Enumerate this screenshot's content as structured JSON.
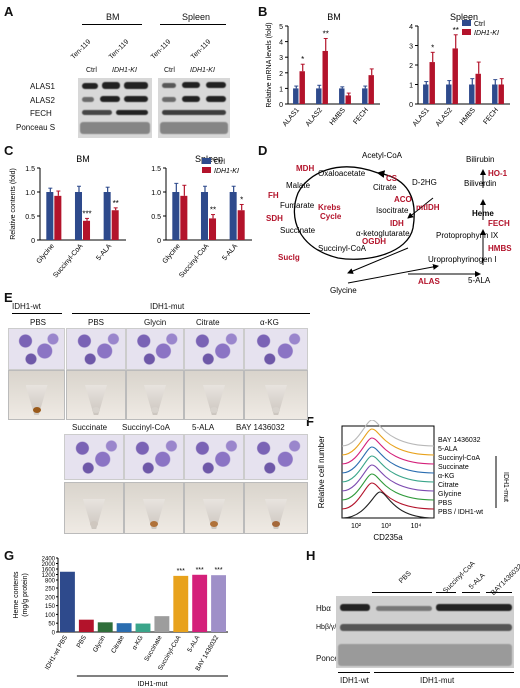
{
  "panel_labels": {
    "a": "A",
    "b": "B",
    "c": "C",
    "d": "D",
    "e": "E",
    "f": "F",
    "g": "G",
    "h": "H"
  },
  "panel_a": {
    "groups": [
      "BM",
      "Spleen"
    ],
    "genotype_hdr": [
      "Ten-119",
      "Ten-119"
    ],
    "lanes": [
      "Ctrl",
      "IDH1-KI",
      "Ctrl",
      "IDH1-KI"
    ],
    "rows": [
      "ALAS1",
      "ALAS2",
      "FECH",
      "Ponceau S"
    ]
  },
  "legend": {
    "ctrl": "Ctrl",
    "ki": "IDH1-KI",
    "ctrl_color": "#2e4a8c",
    "ki_color": "#b3132b"
  },
  "chart_data": [
    {
      "type": "bar",
      "panel": "B",
      "title": "BM",
      "ylabel": "Relative mRNA levels (fold)",
      "ylim": [
        0,
        5
      ],
      "yticks": [
        0,
        1,
        2,
        3,
        4,
        5
      ],
      "categories": [
        "ALAS1",
        "ALAS2",
        "HMBS",
        "FECH"
      ],
      "series": [
        {
          "name": "Ctrl",
          "values": [
            1.0,
            1.0,
            1.0,
            1.0
          ],
          "err": [
            0.15,
            0.2,
            0.1,
            0.15
          ]
        },
        {
          "name": "IDH1-KI",
          "values": [
            2.1,
            3.4,
            0.55,
            1.85
          ],
          "err": [
            0.45,
            0.8,
            0.15,
            0.4
          ]
        }
      ],
      "sig": [
        "*",
        "**",
        "",
        ""
      ]
    },
    {
      "type": "bar",
      "panel": "B",
      "title": "Spleen",
      "ylim": [
        0,
        4
      ],
      "yticks": [
        0,
        1,
        2,
        3,
        4
      ],
      "categories": [
        "ALAS1",
        "ALAS2",
        "HMBS",
        "FECH"
      ],
      "series": [
        {
          "name": "Ctrl",
          "values": [
            1.0,
            1.0,
            1.0,
            1.0
          ],
          "err": [
            0.15,
            0.2,
            0.3,
            0.25
          ]
        },
        {
          "name": "IDH1-KI",
          "values": [
            2.15,
            2.85,
            1.55,
            1.0
          ],
          "err": [
            0.5,
            0.7,
            0.6,
            0.3
          ]
        }
      ],
      "sig": [
        "*",
        "**",
        "",
        ""
      ]
    },
    {
      "type": "bar",
      "panel": "C",
      "title": "BM",
      "ylabel": "Relative contents (fold)",
      "ylim": [
        0,
        1.5
      ],
      "yticks": [
        0,
        0.5,
        1.0,
        1.5
      ],
      "categories": [
        "Glycine",
        "Succinyl-CoA",
        "5-ALA"
      ],
      "series": [
        {
          "name": "Ctrl",
          "values": [
            1.0,
            1.0,
            1.0
          ],
          "err": [
            0.08,
            0.12,
            0.1
          ]
        },
        {
          "name": "IDH1-KI",
          "values": [
            0.92,
            0.4,
            0.62
          ],
          "err": [
            0.1,
            0.05,
            0.05
          ]
        }
      ],
      "sig": [
        "",
        "***",
        "**"
      ]
    },
    {
      "type": "bar",
      "panel": "C",
      "title": "Spleen",
      "ylim": [
        0,
        1.5
      ],
      "yticks": [
        0,
        0.5,
        1.0,
        1.5
      ],
      "categories": [
        "Glycine",
        "Succinyl-CoA",
        "5-ALA"
      ],
      "series": [
        {
          "name": "Ctrl",
          "values": [
            1.0,
            1.0,
            1.0
          ],
          "err": [
            0.18,
            0.12,
            0.12
          ]
        },
        {
          "name": "IDH1-KI",
          "values": [
            0.92,
            0.45,
            0.62
          ],
          "err": [
            0.22,
            0.08,
            0.12
          ]
        }
      ],
      "sig": [
        "",
        "**",
        "*"
      ]
    },
    {
      "type": "bar",
      "panel": "G",
      "ylabel": "Heme contents\n(mg/g protein)",
      "ytick_labels": [
        "0",
        "50",
        "100",
        "150",
        "200",
        "250",
        "800",
        "1200",
        "1600",
        "2000",
        "2400"
      ],
      "categories": [
        "IDH1-wt PBS",
        "PBS",
        "Glycin",
        "Citrate",
        "α-KG",
        "Succinate",
        "Succinyl-CoA",
        "5-ALA",
        "BAY 1436032"
      ],
      "values": [
        1400,
        70,
        55,
        50,
        48,
        90,
        1100,
        1180,
        1150
      ],
      "colors": [
        "#2e4a8c",
        "#b3132b",
        "#2f6e3a",
        "#2a6db0",
        "#3aa58a",
        "#9d9d9d",
        "#e8a21c",
        "#d4207a",
        "#9f90c8"
      ],
      "sig": [
        "",
        "",
        "",
        "",
        "",
        "",
        "***",
        "***",
        "***"
      ],
      "group_label": "IDH1-mut"
    }
  ],
  "panel_d": {
    "metabolites": [
      "Acetyl-CoA",
      "Oxaloacetate",
      "Citrate",
      "Isocitrate",
      "α-ketoglutarate",
      "Succinyl-CoA",
      "Succinate",
      "Fumarate",
      "Malate",
      "D-2HG",
      "Glycine",
      "5-ALA",
      "Uroprophyrinogen I",
      "Protoprophyrin IX",
      "Heme",
      "Biliverdin",
      "Bilirubin"
    ],
    "enzymes": [
      "CS",
      "ACO",
      "IDH",
      "mtIDH",
      "OGDH",
      "Suclg",
      "SDH",
      "FH",
      "MDH",
      "ALAS",
      "HMBS",
      "FECH",
      "HO-1"
    ],
    "cycle": "Krebs\nCycle"
  },
  "panel_e": {
    "wt": "IDH1-wt",
    "mut": "IDH1-mut",
    "row1": [
      "PBS",
      "PBS",
      "Glycin",
      "Citrate",
      "α-KG"
    ],
    "row2": [
      "Succinate",
      "Succinyl-CoA",
      "5-ALA",
      "BAY 1436032"
    ]
  },
  "panel_f": {
    "labels": [
      "BAY 1436032",
      "5-ALA",
      "Succinyl-CoA",
      "Succinate",
      "α-KG",
      "Citrate",
      "Glycine",
      "PBS",
      "PBS / IDH1-wt"
    ],
    "group": "IDH1-mut",
    "ylabel": "Relative cell number",
    "xlabel": "CD235a",
    "xticks": [
      "10²",
      "10³",
      "10⁴"
    ],
    "colors": [
      "#b8b8b8",
      "#e8a21c",
      "#d4207a",
      "#2a6db0",
      "#3aa58a",
      "#7c4ab0",
      "#2f9a3a",
      "#b3132b",
      "#222222"
    ]
  },
  "panel_h": {
    "top_labels": [
      "PBS",
      "Succinyl-CoA",
      "5-ALA",
      "BAY1436032"
    ],
    "rows": [
      "Hbα",
      "Hbβ/γ/δ/ε",
      "Ponceau S"
    ],
    "bottom": [
      "IDH1-wt",
      "IDH1-mut"
    ]
  }
}
